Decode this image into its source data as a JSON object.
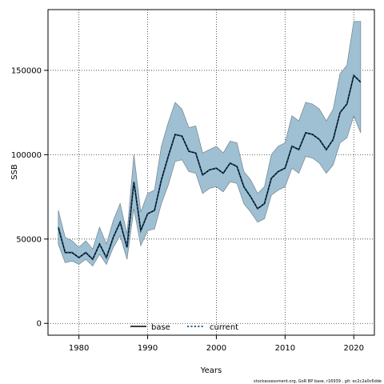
{
  "chart_data": {
    "type": "area",
    "xlabel": "Years",
    "ylabel": "SSB",
    "xlim": [
      1975.5,
      2023
    ],
    "ylim": [
      -7000,
      186000
    ],
    "x_ticks": [
      1980,
      1990,
      2000,
      2010,
      2020
    ],
    "x_tick_labels": [
      "1980",
      "1990",
      "2000",
      "2010",
      "2020"
    ],
    "y_ticks": [
      0,
      50000,
      100000,
      150000
    ],
    "y_tick_labels": [
      "0",
      "50000",
      "100000",
      "150000"
    ],
    "grid": true,
    "legend_position": "bottom-center",
    "legend": [
      {
        "label": "base",
        "style": "solid",
        "color": "#000000"
      },
      {
        "label": "current",
        "style": "dotted",
        "color": "#1b4f7a"
      }
    ],
    "band_color": "#9fc0d3",
    "band_edge_color": "#7a8c97",
    "x": [
      1977,
      1978,
      1979,
      1980,
      1981,
      1982,
      1983,
      1984,
      1985,
      1986,
      1987,
      1988,
      1989,
      1990,
      1991,
      1992,
      1993,
      1994,
      1995,
      1996,
      1997,
      1998,
      1999,
      2000,
      2001,
      2002,
      2003,
      2004,
      2005,
      2006,
      2007,
      2008,
      2009,
      2010,
      2011,
      2012,
      2013,
      2014,
      2015,
      2016,
      2017,
      2018,
      2019,
      2020,
      2021
    ],
    "series": [
      {
        "name": "base",
        "values": [
          57000,
          42000,
          42000,
          39000,
          42000,
          38000,
          47000,
          39000,
          51000,
          60000,
          45000,
          84000,
          55000,
          65000,
          67000,
          85000,
          99000,
          112000,
          111000,
          102000,
          101000,
          88000,
          91000,
          92000,
          89000,
          95000,
          93000,
          81000,
          75000,
          68000,
          71000,
          86000,
          90000,
          92000,
          105000,
          103000,
          113000,
          112000,
          109000,
          103000,
          109000,
          125000,
          130000,
          147000,
          143000
        ]
      },
      {
        "name": "current",
        "values": [
          57000,
          42000,
          42000,
          39000,
          42000,
          38000,
          47000,
          39000,
          51000,
          60000,
          45000,
          84000,
          55000,
          65000,
          67000,
          85000,
          99000,
          112000,
          111000,
          102000,
          101000,
          88000,
          91000,
          92000,
          89000,
          95000,
          93000,
          81000,
          75000,
          68000,
          71000,
          86000,
          90000,
          92000,
          105000,
          103000,
          113000,
          112000,
          109000,
          103000,
          109000,
          125000,
          130000,
          147000,
          143000
        ]
      }
    ],
    "interval_upper": [
      67000,
      51000,
      49000,
      45000,
      49000,
      44000,
      57000,
      47000,
      61000,
      71000,
      53000,
      100000,
      66000,
      77000,
      79000,
      105000,
      119000,
      131000,
      127000,
      116000,
      117000,
      101000,
      103000,
      105000,
      101000,
      108000,
      107000,
      90000,
      85000,
      77000,
      81000,
      100000,
      105000,
      107000,
      123000,
      120000,
      131000,
      130000,
      127000,
      120000,
      127000,
      148000,
      153000,
      179000,
      179000
    ],
    "interval_lower": [
      47000,
      36000,
      37000,
      35000,
      38000,
      34000,
      41000,
      35000,
      45000,
      52000,
      38000,
      68000,
      46000,
      55000,
      56000,
      71000,
      82000,
      96000,
      97000,
      90000,
      89000,
      77000,
      80000,
      81000,
      78000,
      84000,
      83000,
      71000,
      66000,
      60000,
      62000,
      76000,
      79000,
      81000,
      92000,
      89000,
      99000,
      98000,
      95000,
      89000,
      94000,
      107000,
      110000,
      123000,
      113000
    ]
  },
  "footer": {
    "note": "stockassessment.org, GoR BP base, r16939 , git: ec2c2a0c6dde"
  }
}
